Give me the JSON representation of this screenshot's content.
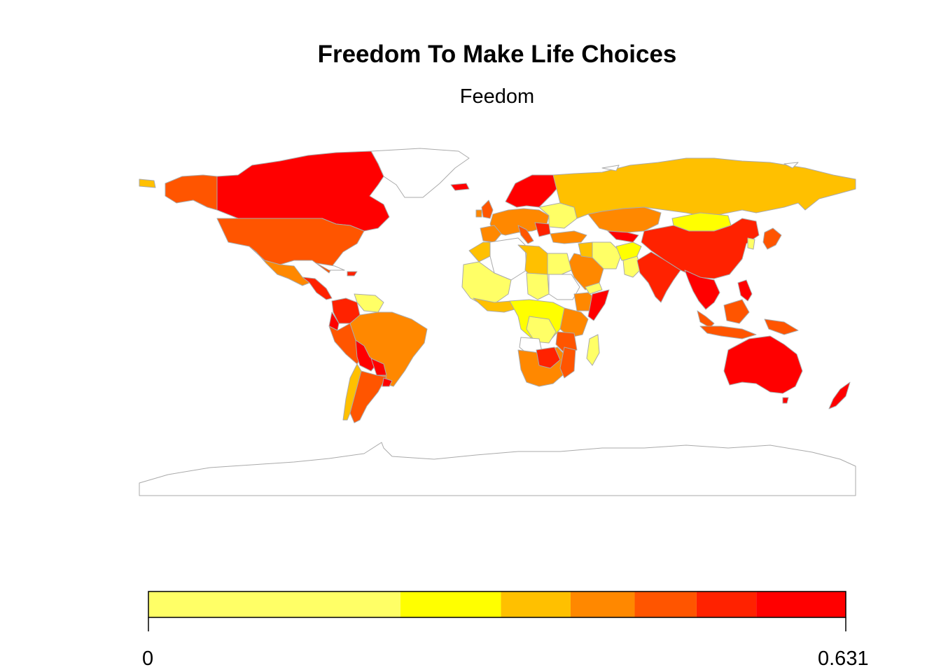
{
  "header": {
    "title": "Freedom To Make Life Choices",
    "subtitle": "Feedom"
  },
  "legend": {
    "min_label": "0",
    "max_label": "0.631",
    "colors": [
      "#FFFF66",
      "#FFFF00",
      "#FFC000",
      "#FF8800",
      "#FF5500",
      "#FF2200",
      "#FF0000"
    ],
    "breaks": [
      0,
      0.228,
      0.319,
      0.382,
      0.44,
      0.496,
      0.55,
      0.631
    ]
  },
  "map": {
    "projection": "equirectangular",
    "no_data_color": "#FFFFFF",
    "border_color": "#AAAAAA"
  }
}
